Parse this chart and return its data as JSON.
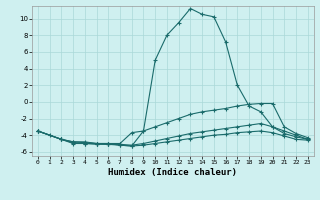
{
  "xlabel": "Humidex (Indice chaleur)",
  "bg_color": "#cff0f0",
  "grid_color": "#aad8d8",
  "line_color": "#1a6b6b",
  "xlim": [
    -0.5,
    23.5
  ],
  "ylim": [
    -6.5,
    11.5
  ],
  "xticks": [
    0,
    1,
    2,
    3,
    4,
    5,
    6,
    7,
    8,
    9,
    10,
    11,
    12,
    13,
    14,
    15,
    16,
    17,
    18,
    19,
    20,
    21,
    22,
    23
  ],
  "yticks": [
    -6,
    -4,
    -2,
    0,
    2,
    4,
    6,
    8,
    10
  ],
  "line1_x": [
    0,
    1,
    2,
    3,
    4,
    5,
    6,
    7,
    8,
    9,
    10,
    11,
    12,
    13,
    14,
    15,
    16,
    17,
    18,
    19,
    20,
    21,
    22,
    23
  ],
  "line1_y": [
    -3.5,
    -4.0,
    -4.5,
    -5.0,
    -5.0,
    -5.0,
    -5.0,
    -5.2,
    -5.3,
    -3.5,
    5.0,
    8.0,
    9.5,
    11.2,
    10.5,
    10.2,
    7.2,
    2.0,
    -0.5,
    -1.2,
    -3.0,
    -3.5,
    -4.0,
    -4.5
  ],
  "line2_x": [
    0,
    2,
    3,
    4,
    5,
    6,
    7,
    8,
    9,
    10,
    11,
    12,
    13,
    14,
    15,
    16,
    17,
    18,
    19,
    20,
    21,
    22,
    23
  ],
  "line2_y": [
    -3.5,
    -4.5,
    -4.8,
    -4.8,
    -5.0,
    -5.0,
    -5.0,
    -3.7,
    -3.5,
    -3.0,
    -2.5,
    -2.0,
    -1.5,
    -1.2,
    -1.0,
    -0.8,
    -0.5,
    -0.3,
    -0.2,
    -0.2,
    -3.0,
    -3.8,
    -4.3
  ],
  "line3_x": [
    0,
    2,
    3,
    4,
    5,
    6,
    7,
    8,
    9,
    10,
    11,
    12,
    13,
    14,
    15,
    16,
    17,
    18,
    19,
    20,
    21,
    22,
    23
  ],
  "line3_y": [
    -3.5,
    -4.5,
    -4.8,
    -4.9,
    -5.0,
    -5.1,
    -5.1,
    -5.2,
    -5.0,
    -4.7,
    -4.4,
    -4.1,
    -3.8,
    -3.6,
    -3.4,
    -3.2,
    -3.0,
    -2.8,
    -2.6,
    -3.0,
    -3.8,
    -4.2,
    -4.5
  ],
  "line4_x": [
    0,
    2,
    3,
    4,
    5,
    6,
    7,
    8,
    9,
    10,
    11,
    12,
    13,
    14,
    15,
    16,
    17,
    18,
    19,
    20,
    21,
    22,
    23
  ],
  "line4_y": [
    -3.5,
    -4.5,
    -4.9,
    -5.0,
    -5.1,
    -5.1,
    -5.2,
    -5.3,
    -5.2,
    -5.0,
    -4.8,
    -4.6,
    -4.4,
    -4.2,
    -4.0,
    -3.9,
    -3.7,
    -3.6,
    -3.5,
    -3.7,
    -4.1,
    -4.5,
    -4.6
  ]
}
